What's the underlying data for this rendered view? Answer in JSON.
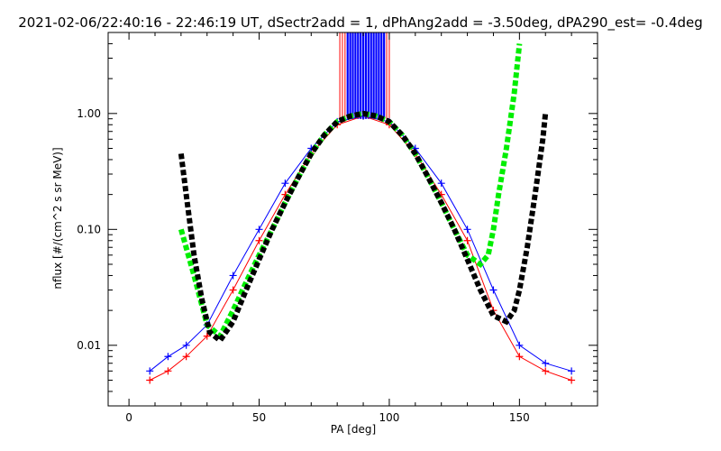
{
  "chart_data": {
    "type": "line",
    "title": "2021-02-06/22:40:16 - 22:46:19 UT, dSectr2add = 1, dPhAng2add = -3.50deg, dPA290_est=  -0.4deg",
    "xlabel": "PA [deg]",
    "ylabel": "nflux [#/(cm^2 s sr MeV)]",
    "xlim": [
      -8,
      180
    ],
    "ylim": [
      0.003,
      5.0
    ],
    "yscale": "log",
    "grid": false,
    "x_ticks": [
      0,
      50,
      100,
      150
    ],
    "y_ticks": [
      0.01,
      0.1,
      1.0
    ],
    "x_tick_labels": [
      "0",
      "50",
      "100",
      "150"
    ],
    "y_tick_labels": [
      "0.01",
      "0.10",
      "1.00"
    ],
    "series": [
      {
        "color": "#ff0000",
        "style": "line+plus",
        "x": [
          8,
          15,
          22,
          30,
          40,
          50,
          60,
          70,
          80,
          90,
          100,
          110,
          120,
          130,
          140,
          150,
          160,
          170
        ],
        "y": [
          0.005,
          0.006,
          0.008,
          0.012,
          0.03,
          0.08,
          0.2,
          0.45,
          0.8,
          0.95,
          0.8,
          0.45,
          0.2,
          0.08,
          0.02,
          0.008,
          0.006,
          0.005
        ]
      },
      {
        "color": "#0000ff",
        "style": "line+plus",
        "x": [
          8,
          15,
          22,
          30,
          40,
          50,
          60,
          70,
          80,
          90,
          100,
          110,
          120,
          130,
          140,
          150,
          160,
          170
        ],
        "y": [
          0.006,
          0.008,
          0.01,
          0.015,
          0.04,
          0.1,
          0.25,
          0.5,
          0.85,
          0.95,
          0.85,
          0.5,
          0.25,
          0.1,
          0.03,
          0.01,
          0.007,
          0.006
        ]
      },
      {
        "color": "#00ee00",
        "style": "thick-dashed",
        "x": [
          20,
          25,
          30,
          35,
          40,
          45,
          50,
          55,
          60,
          65,
          70,
          75,
          80,
          85,
          90,
          95,
          100,
          105,
          110,
          115,
          120,
          125,
          130,
          135,
          138,
          140,
          142,
          145,
          148,
          150
        ],
        "y": [
          0.1,
          0.04,
          0.015,
          0.012,
          0.02,
          0.035,
          0.06,
          0.1,
          0.17,
          0.28,
          0.45,
          0.65,
          0.85,
          0.95,
          1.0,
          0.95,
          0.85,
          0.65,
          0.45,
          0.28,
          0.17,
          0.1,
          0.06,
          0.05,
          0.06,
          0.1,
          0.2,
          0.5,
          1.5,
          4.0
        ]
      },
      {
        "color": "#000000",
        "style": "thick-dashed",
        "x": [
          20,
          22,
          25,
          28,
          31,
          35,
          40,
          45,
          50,
          55,
          60,
          65,
          70,
          75,
          80,
          85,
          90,
          95,
          100,
          105,
          110,
          115,
          120,
          125,
          130,
          135,
          140,
          145,
          148,
          150,
          153,
          156,
          159,
          160
        ],
        "y": [
          0.45,
          0.2,
          0.06,
          0.025,
          0.013,
          0.011,
          0.016,
          0.03,
          0.055,
          0.1,
          0.17,
          0.28,
          0.45,
          0.65,
          0.85,
          0.95,
          1.0,
          0.95,
          0.85,
          0.65,
          0.45,
          0.28,
          0.17,
          0.1,
          0.055,
          0.03,
          0.018,
          0.016,
          0.02,
          0.03,
          0.07,
          0.2,
          0.6,
          1.0
        ]
      }
    ],
    "spikes": [
      {
        "color": "#ff0000",
        "x": [
          81,
          82,
          83,
          84,
          85,
          86,
          87,
          88,
          89,
          90,
          91,
          92,
          93,
          94,
          95,
          96,
          97,
          98,
          99,
          100
        ],
        "y_top": 5.0
      },
      {
        "color": "#0000ff",
        "x": [
          84,
          85,
          86,
          87,
          88,
          89,
          90,
          91,
          92,
          93,
          94,
          95,
          96,
          97,
          98
        ],
        "y_top": 5.0
      }
    ]
  }
}
